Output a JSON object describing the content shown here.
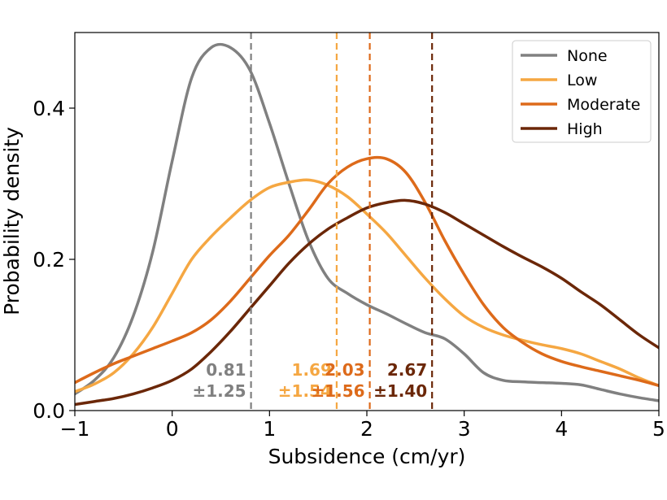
{
  "chart_data": {
    "type": "line",
    "xlabel": "Subsidence (cm/yr)",
    "ylabel": "Probability density",
    "xlim": [
      -1,
      5
    ],
    "ylim": [
      0,
      0.5
    ],
    "xticks": [
      -1,
      0,
      1,
      2,
      3,
      4,
      5
    ],
    "xtick_labels": [
      "−1",
      "0",
      "1",
      "2",
      "3",
      "4",
      "5"
    ],
    "yticks": [
      0.0,
      0.2,
      0.4
    ],
    "ytick_labels": [
      "0.0",
      "0.2",
      "0.4"
    ],
    "grid": false,
    "legend": "top-right",
    "series": [
      {
        "name": "None",
        "color": "#808080",
        "mean": 0.81,
        "mean_label": "0.81",
        "sd_label": "±1.25",
        "x": [
          -1.0,
          -0.8,
          -0.6,
          -0.4,
          -0.2,
          0.0,
          0.2,
          0.4,
          0.6,
          0.8,
          1.0,
          1.2,
          1.4,
          1.6,
          1.8,
          2.0,
          2.2,
          2.4,
          2.6,
          2.8,
          3.0,
          3.2,
          3.4,
          3.6,
          3.8,
          4.0,
          4.2,
          4.4,
          4.6,
          4.8,
          5.0
        ],
        "y": [
          0.022,
          0.04,
          0.07,
          0.125,
          0.21,
          0.33,
          0.44,
          0.48,
          0.48,
          0.45,
          0.38,
          0.3,
          0.225,
          0.175,
          0.155,
          0.14,
          0.128,
          0.115,
          0.103,
          0.095,
          0.075,
          0.05,
          0.04,
          0.038,
          0.037,
          0.036,
          0.034,
          0.028,
          0.022,
          0.017,
          0.013
        ]
      },
      {
        "name": "Low",
        "color": "#f5a742",
        "mean": 1.69,
        "mean_label": "1.69",
        "sd_label": "±1.54",
        "x": [
          -1.0,
          -0.8,
          -0.6,
          -0.4,
          -0.2,
          0.0,
          0.2,
          0.4,
          0.6,
          0.8,
          1.0,
          1.2,
          1.4,
          1.6,
          1.8,
          2.0,
          2.2,
          2.4,
          2.6,
          2.8,
          3.0,
          3.2,
          3.4,
          3.6,
          3.8,
          4.0,
          4.2,
          4.4,
          4.6,
          4.8,
          5.0
        ],
        "y": [
          0.025,
          0.035,
          0.05,
          0.075,
          0.11,
          0.155,
          0.2,
          0.23,
          0.255,
          0.278,
          0.295,
          0.302,
          0.305,
          0.298,
          0.283,
          0.26,
          0.235,
          0.205,
          0.175,
          0.148,
          0.125,
          0.11,
          0.1,
          0.093,
          0.087,
          0.082,
          0.075,
          0.065,
          0.055,
          0.043,
          0.033
        ]
      },
      {
        "name": "Moderate",
        "color": "#dd6a1a",
        "mean": 2.03,
        "mean_label": "2.03",
        "sd_label": "±1.56",
        "x": [
          -1.0,
          -0.8,
          -0.6,
          -0.4,
          -0.2,
          0.0,
          0.2,
          0.4,
          0.6,
          0.8,
          1.0,
          1.2,
          1.4,
          1.6,
          1.8,
          2.0,
          2.2,
          2.4,
          2.6,
          2.8,
          3.0,
          3.2,
          3.4,
          3.6,
          3.8,
          4.0,
          4.2,
          4.4,
          4.6,
          4.8,
          5.0
        ],
        "y": [
          0.037,
          0.05,
          0.062,
          0.072,
          0.082,
          0.092,
          0.103,
          0.12,
          0.145,
          0.175,
          0.205,
          0.232,
          0.265,
          0.3,
          0.322,
          0.333,
          0.333,
          0.315,
          0.275,
          0.225,
          0.18,
          0.14,
          0.11,
          0.09,
          0.075,
          0.065,
          0.058,
          0.052,
          0.046,
          0.04,
          0.033
        ]
      },
      {
        "name": "High",
        "color": "#6b2708",
        "mean": 2.67,
        "mean_label": "2.67",
        "sd_label": "±1.40",
        "x": [
          -1.0,
          -0.8,
          -0.6,
          -0.4,
          -0.2,
          0.0,
          0.2,
          0.4,
          0.6,
          0.8,
          1.0,
          1.2,
          1.4,
          1.6,
          1.8,
          2.0,
          2.2,
          2.4,
          2.6,
          2.8,
          3.0,
          3.2,
          3.4,
          3.6,
          3.8,
          4.0,
          4.2,
          4.4,
          4.6,
          4.8,
          5.0
        ],
        "y": [
          0.008,
          0.012,
          0.016,
          0.022,
          0.03,
          0.04,
          0.055,
          0.078,
          0.105,
          0.135,
          0.165,
          0.195,
          0.22,
          0.24,
          0.255,
          0.268,
          0.275,
          0.278,
          0.273,
          0.262,
          0.247,
          0.232,
          0.217,
          0.203,
          0.19,
          0.175,
          0.157,
          0.14,
          0.12,
          0.1,
          0.083
        ]
      }
    ]
  }
}
